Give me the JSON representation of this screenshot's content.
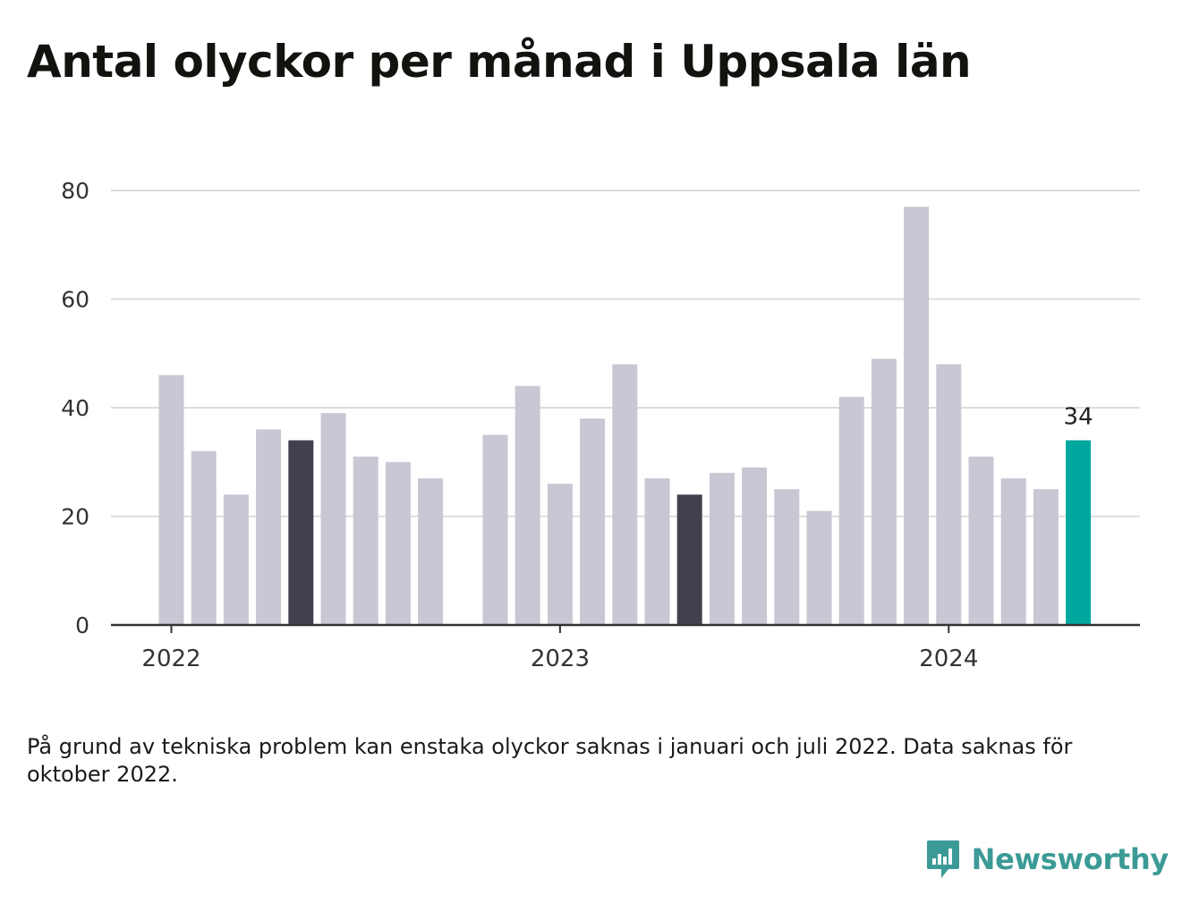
{
  "title": "Antal olyckor per månad i Uppsala län",
  "footnote": "På grund av tekniska problem kan enstaka olyckor saknas i januari och juli 2022. Data saknas för oktober 2022.",
  "brand": {
    "name": "Newsworthy"
  },
  "colors": {
    "bar_default": "#c8c7d3",
    "bar_dark": "#41404f",
    "bar_highlight": "#00a79e",
    "grid": "#dcdcdc",
    "axis": "#333333",
    "brand": "#3b9a96"
  },
  "chart_data": {
    "type": "bar",
    "title": "Antal olyckor per månad i Uppsala län",
    "xlabel": "",
    "ylabel": "",
    "ylim": [
      0,
      80
    ],
    "y_ticks": [
      0,
      20,
      40,
      60,
      80
    ],
    "x_ticks": [
      "2022",
      "2023",
      "2024"
    ],
    "grid": true,
    "categories": [
      "2022-01",
      "2022-02",
      "2022-03",
      "2022-04",
      "2022-05",
      "2022-06",
      "2022-07",
      "2022-08",
      "2022-09",
      "2022-10",
      "2022-11",
      "2022-12",
      "2023-01",
      "2023-02",
      "2023-03",
      "2023-04",
      "2023-05",
      "2023-06",
      "2023-07",
      "2023-08",
      "2023-09",
      "2023-10",
      "2023-11",
      "2023-12",
      "2024-01",
      "2024-02",
      "2024-03",
      "2024-04",
      "2024-05"
    ],
    "values": [
      46,
      32,
      24,
      36,
      34,
      39,
      31,
      30,
      27,
      null,
      35,
      44,
      26,
      38,
      48,
      27,
      24,
      28,
      29,
      25,
      21,
      42,
      49,
      77,
      48,
      31,
      27,
      25,
      34
    ],
    "bar_styles": [
      "default",
      "default",
      "default",
      "default",
      "dark",
      "default",
      "default",
      "default",
      "default",
      "default",
      "default",
      "default",
      "default",
      "default",
      "default",
      "default",
      "dark",
      "default",
      "default",
      "default",
      "default",
      "default",
      "default",
      "default",
      "default",
      "default",
      "default",
      "default",
      "highlight"
    ],
    "annotations": [
      {
        "category": "2024-05",
        "text": "34"
      }
    ]
  }
}
